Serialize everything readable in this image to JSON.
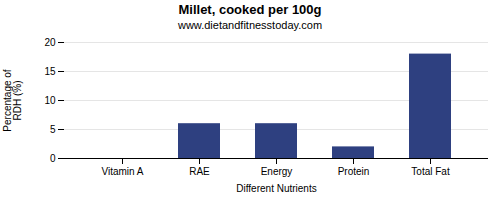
{
  "chart_data": {
    "type": "bar",
    "title": "Millet, cooked per 100g",
    "subtitle": "www.dietandfitnesstoday.com",
    "xlabel": "Different Nutrients",
    "ylabel": "Percentage of\nRDH (%)",
    "categories": [
      "Vitamin A",
      "RAE",
      "Energy",
      "Protein",
      "Total Fat"
    ],
    "values": [
      0.0,
      6.0,
      6.0,
      2.0,
      18.0
    ],
    "color": "#2e4080",
    "ylim": [
      0,
      20
    ],
    "yticks": [
      0,
      5,
      10,
      15,
      20
    ],
    "grid": true
  }
}
